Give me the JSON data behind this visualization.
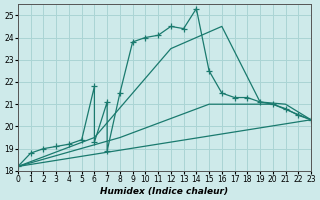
{
  "background_color": "#ceeaea",
  "grid_color": "#aad4d4",
  "line_color": "#1a7a6e",
  "xlim": [
    0,
    23
  ],
  "ylim": [
    18,
    25.5
  ],
  "yticks": [
    18,
    19,
    20,
    21,
    22,
    23,
    24,
    25
  ],
  "xticks": [
    0,
    1,
    2,
    3,
    4,
    5,
    6,
    7,
    8,
    9,
    10,
    11,
    12,
    13,
    14,
    15,
    16,
    17,
    18,
    19,
    20,
    21,
    22,
    23
  ],
  "xlabel": "Humidex (Indice chaleur)",
  "series1_x": [
    0,
    1,
    2,
    3,
    4,
    5,
    6,
    6,
    7,
    7,
    8,
    9,
    10,
    11,
    12,
    13,
    14,
    15,
    16,
    17,
    18,
    19,
    20,
    21,
    22,
    23
  ],
  "series1_y": [
    18.2,
    18.8,
    19.0,
    19.1,
    19.2,
    19.4,
    21.8,
    19.3,
    21.1,
    18.9,
    21.5,
    23.8,
    24.0,
    24.1,
    24.5,
    24.4,
    25.3,
    22.5,
    21.5,
    21.3,
    21.3,
    21.1,
    21.0,
    20.8,
    20.5,
    20.3
  ],
  "series2_x": [
    0,
    6,
    12,
    16,
    19,
    21,
    23
  ],
  "series2_y": [
    18.2,
    19.5,
    23.5,
    24.5,
    21.1,
    21.0,
    20.3
  ],
  "series3_x": [
    0,
    8,
    15,
    20,
    23
  ],
  "series3_y": [
    18.2,
    19.5,
    21.0,
    21.0,
    20.3
  ],
  "series4_x": [
    0,
    23
  ],
  "series4_y": [
    18.2,
    20.3
  ]
}
